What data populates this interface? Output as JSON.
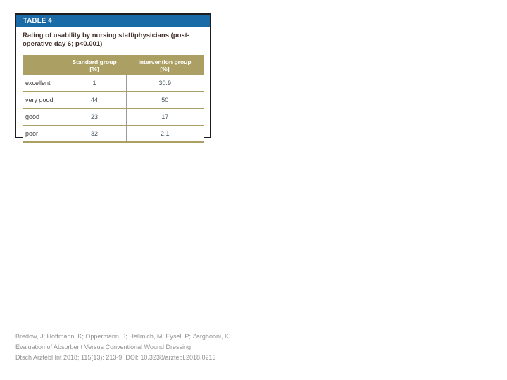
{
  "table": {
    "tag": "TABLE 4",
    "title": "Rating of usability by nursing staff/physicians (post-\noperative day 6; p<0.001)",
    "columns": {
      "standard": "Standard group\n[%]",
      "intervention": "Intervention group\n[%]"
    },
    "rows": [
      {
        "label": "excellent",
        "standard": "1",
        "intervention": "30.9"
      },
      {
        "label": "very good",
        "standard": "44",
        "intervention": "50"
      },
      {
        "label": "good",
        "standard": "23",
        "intervention": "17"
      },
      {
        "label": "poor",
        "standard": "32",
        "intervention": "2.1"
      }
    ],
    "colors": {
      "tag_bar": "#1a6aa8",
      "header_bg": "#ab9f63",
      "header_text": "#ffffff",
      "title_text": "#46322c",
      "value_text": "#44535d",
      "card_border": "#1d1d1d"
    }
  },
  "chart_data": {
    "type": "table",
    "title": "Rating of usability by nursing staff/physicians (post-operative day 6; p<0.001)",
    "categories": [
      "excellent",
      "very good",
      "good",
      "poor"
    ],
    "series": [
      {
        "name": "Standard group [%]",
        "values": [
          1,
          44,
          23,
          32
        ]
      },
      {
        "name": "Intervention group [%]",
        "values": [
          30.9,
          50,
          17,
          2.1
        ]
      }
    ]
  },
  "citation": {
    "authors": "Bredow, J; Hoffmann, K; Oppermann, J; Hellmich, M; Eysel, P; Zarghooni, K",
    "paper_title": "Evaluation of Absorbent Versus Conventional Wound Dressing",
    "reference": "Dtsch Arztebl Int 2018; 115(13): 213-9; DOI: 10.3238/arztebl.2018.0213"
  }
}
